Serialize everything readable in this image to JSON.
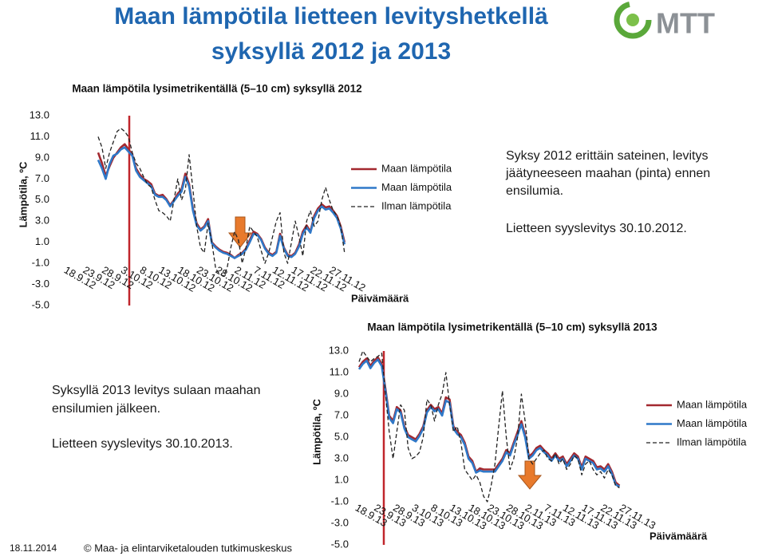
{
  "title": [
    "Maan lämpötila lietteen levityshetkellä",
    "syksyllä 2012 ja 2013"
  ],
  "logo": "MTT",
  "notes": [
    {
      "lines": [
        "Syksy 2012 erittäin sateinen, levitys",
        "jäätyneeseen maahan (pinta) ennen",
        "ensilumia.",
        "Lietteen syyslevitys 30.10.2012."
      ]
    },
    {
      "lines": [
        "Syksyllä 2013 levitys sulaan maahan",
        "ensilumien jälkeen.",
        "Lietteen syyslevitys 30.10.2013."
      ]
    }
  ],
  "footer": {
    "date": "18.11.2014",
    "copyright": "© Maa- ja elintarviketalouden tutkimuskeskus"
  },
  "chart_data": [
    {
      "type": "line",
      "title": "Maan lämpötila lysimetrikentällä (5–10 cm) syksyllä 2012",
      "ylabel": "Lämpötila, ºC",
      "xlabel": "Päivämäärä",
      "categories": [
        "18.9.12",
        null,
        null,
        null,
        null,
        "23.9.12",
        null,
        null,
        null,
        null,
        "28.9.12",
        null,
        null,
        null,
        null,
        "3.10.12",
        null,
        null,
        null,
        null,
        "8.10.12",
        null,
        null,
        null,
        null,
        "13.10.12",
        null,
        null,
        null,
        null,
        "18.10.12",
        null,
        null,
        null,
        null,
        "23.10.12",
        null,
        null,
        null,
        null,
        "28.10.12",
        null,
        null,
        null,
        null,
        "2.11.12",
        null,
        null,
        null,
        null,
        "7.11.12",
        null,
        null,
        null,
        null,
        "12.11.12",
        null,
        null,
        null,
        null,
        "17.11.12",
        null,
        null,
        null,
        null,
        "22.11.12",
        null,
        null,
        null,
        null,
        "27.11.12",
        null,
        null,
        null,
        null
      ],
      "series": [
        {
          "name": "Maan lämpötila",
          "color": "#a3282f",
          "values": [
            null,
            null,
            null,
            null,
            null,
            null,
            null,
            null,
            9.5,
            8.5,
            7.3,
            8.2,
            9,
            9.5,
            10,
            10.3,
            9.8,
            9.3,
            8,
            7.4,
            7,
            6.8,
            6.5,
            5.6,
            5.4,
            5.5,
            5.1,
            4.5,
            5,
            5.6,
            6,
            7.5,
            6.5,
            4.2,
            2.8,
            2.2,
            2.5,
            3.2,
            1,
            0.6,
            0.3,
            0.1,
            0,
            -0.2,
            -0.5,
            -0.2,
            0,
            0.4,
            1.2,
            2,
            1.8,
            1.3,
            0.5,
            0,
            -0.2,
            0.1,
            1.8,
            0.5,
            -0.2,
            -0.3,
            0,
            0.8,
            2,
            2.6,
            2,
            3.5,
            4.2,
            4.6,
            4.3,
            4.4,
            4,
            3.5,
            2.5,
            1,
            null
          ]
        },
        {
          "name": "Maan lämpötila",
          "color": "#2f78c8",
          "values": [
            null,
            null,
            null,
            null,
            null,
            null,
            null,
            null,
            8.8,
            8,
            7,
            8.4,
            9.2,
            9.4,
            9.8,
            10,
            9.6,
            9.2,
            7.8,
            7.2,
            6.9,
            6.6,
            6.3,
            5.5,
            5.3,
            5.3,
            5,
            4.4,
            4.9,
            5.4,
            5.8,
            7.2,
            6.3,
            4,
            2.6,
            2.1,
            2.4,
            3,
            0.9,
            0.5,
            0.2,
            0,
            -0.1,
            -0.3,
            -0.5,
            -0.3,
            -0.1,
            0.3,
            1,
            1.8,
            1.7,
            1.2,
            0.4,
            -0.1,
            -0.3,
            0,
            1.6,
            0.4,
            -0.3,
            -0.4,
            -0.1,
            0.6,
            1.8,
            2.4,
            1.9,
            3.3,
            4,
            4.4,
            4.1,
            4.2,
            3.8,
            3.3,
            2.3,
            0.8,
            null
          ]
        },
        {
          "name": "Ilman lämpötila",
          "color": "#222222",
          "dashed": true,
          "values": [
            null,
            null,
            null,
            null,
            null,
            null,
            null,
            null,
            11,
            10,
            8,
            9.5,
            10.5,
            11.5,
            11.8,
            11.5,
            11,
            9.5,
            8.5,
            8,
            7.2,
            6.5,
            6.2,
            5,
            4,
            3.8,
            3.5,
            3,
            5,
            7,
            5,
            6,
            9.3,
            6,
            2.5,
            0.5,
            0,
            2.8,
            1,
            -1.5,
            -2,
            -2.2,
            -1.5,
            0.5,
            2,
            1.2,
            -1,
            0.5,
            2.5,
            2,
            1.5,
            0.2,
            -1,
            0,
            1.5,
            3,
            3.8,
            0,
            -1,
            1,
            3,
            1.5,
            -0.3,
            3,
            4,
            2.5,
            3,
            5,
            6.2,
            5,
            4,
            3.5,
            2.5,
            0,
            null
          ]
        }
      ],
      "ylim": [
        -5,
        13
      ],
      "yticks": [
        {
          "value": 13,
          "label": "13.0"
        },
        {
          "value": 11,
          "label": "11.0"
        },
        {
          "value": 9,
          "label": "9.0"
        },
        {
          "value": 7,
          "label": "7.0"
        },
        {
          "value": 5,
          "label": "5.0"
        },
        {
          "value": 3,
          "label": "3.0"
        },
        {
          "value": 1,
          "label": "1.0"
        },
        {
          "value": -1,
          "label": "-1.0"
        },
        {
          "value": -3,
          "label": "-3.0"
        },
        {
          "value": -5,
          "label": "-5.0"
        }
      ]
    },
    {
      "type": "line",
      "title": "Maan lämpötila lysimetrikentällä (5–10 cm) syksyllä 2013",
      "ylabel": "Lämpötila, ºC",
      "xlabel": "Päivämäärä",
      "categories": [
        "18.9.13",
        null,
        null,
        null,
        null,
        "23.9.13",
        null,
        null,
        null,
        null,
        "28.9.13",
        null,
        null,
        null,
        null,
        "3.10.13",
        null,
        null,
        null,
        null,
        "8.10.13",
        null,
        null,
        null,
        null,
        "13.10.13",
        null,
        null,
        null,
        null,
        "18.10.13",
        null,
        null,
        null,
        null,
        "23.10.13",
        null,
        null,
        null,
        null,
        "28.10.13",
        null,
        null,
        null,
        null,
        "2.11.13",
        null,
        null,
        null,
        null,
        "7.11.13",
        null,
        null,
        null,
        null,
        "12.11.13",
        null,
        null,
        null,
        null,
        "17.11.13",
        null,
        null,
        null,
        null,
        "22.11.13",
        null,
        null,
        null,
        null,
        "27.11.13",
        null,
        null,
        null,
        null
      ],
      "series": [
        {
          "name": "Maan lämpötila",
          "color": "#a3282f",
          "values": [
            11.5,
            12,
            12.3,
            11.6,
            12.1,
            12.4,
            11.8,
            9.5,
            7,
            6.5,
            7.8,
            7.5,
            6,
            5.2,
            5,
            4.8,
            5.3,
            6,
            7.5,
            8,
            7.6,
            7.8,
            7.2,
            8.7,
            8.5,
            6,
            5.5,
            5.2,
            4.5,
            3.2,
            2.8,
            1.8,
            2.1,
            2,
            2,
            2,
            2,
            2.5,
            3,
            3.8,
            3.5,
            4.5,
            5.5,
            6.5,
            5.2,
            3.2,
            3.5,
            4,
            4.2,
            3.8,
            3.5,
            3,
            3.5,
            3,
            3.2,
            2.5,
            3,
            3.5,
            3.2,
            2.2,
            3.2,
            3,
            2.8,
            2.2,
            2.3,
            2,
            2.5,
            1.8,
            0.8,
            0.5,
            null,
            null,
            null,
            null,
            null
          ]
        },
        {
          "name": "Maan lämpötila",
          "color": "#2f78c8",
          "values": [
            11.3,
            11.8,
            12.1,
            11.4,
            11.9,
            12.2,
            11.6,
            9.3,
            6.8,
            6.3,
            7.6,
            7.3,
            5.8,
            5,
            4.8,
            4.6,
            5.1,
            5.8,
            7.3,
            7.8,
            7.4,
            7.6,
            7,
            8.4,
            8.2,
            5.8,
            5.3,
            5,
            4.3,
            3,
            2.6,
            1.7,
            1.9,
            1.8,
            1.8,
            1.8,
            1.8,
            2.3,
            2.8,
            3.6,
            3.3,
            4.3,
            5.2,
            6.2,
            5,
            3,
            3.3,
            3.8,
            4,
            3.6,
            3.3,
            2.8,
            3.3,
            2.8,
            3,
            2.3,
            2.8,
            3.3,
            3,
            2,
            3,
            2.8,
            2.6,
            2,
            2.1,
            1.8,
            2.3,
            1.6,
            0.6,
            0.4,
            null,
            null,
            null,
            null,
            null
          ]
        },
        {
          "name": "Ilman lämpötila",
          "color": "#222222",
          "dashed": true,
          "values": [
            12,
            13,
            12.5,
            12,
            12.3,
            12.5,
            12.8,
            9,
            5.5,
            3,
            5.5,
            8,
            7.5,
            4,
            3,
            3.2,
            3.6,
            5,
            8.5,
            8,
            6.5,
            8,
            9,
            11,
            8,
            5.5,
            6,
            4.5,
            2,
            1.5,
            1,
            1.5,
            0.8,
            -0.5,
            -1,
            0.5,
            2.5,
            6,
            9.3,
            5,
            2,
            3,
            5,
            9,
            6.5,
            3,
            2.5,
            3,
            3.5,
            3.8,
            3,
            2.8,
            3.5,
            2.5,
            3,
            2,
            2.5,
            3.3,
            3,
            1.5,
            2.5,
            2.8,
            2,
            1.5,
            1.8,
            1.2,
            2,
            1.5,
            0.5,
            0.3,
            null,
            null,
            null,
            null,
            null
          ]
        }
      ],
      "ylim": [
        -5,
        13
      ],
      "yticks": [
        {
          "value": 13,
          "label": "13.0"
        },
        {
          "value": 11,
          "label": "11.0"
        },
        {
          "value": 9,
          "label": "9.0"
        },
        {
          "value": 7,
          "label": "7.0"
        },
        {
          "value": 5,
          "label": "5.0"
        },
        {
          "value": 3,
          "label": "3.0"
        },
        {
          "value": 1,
          "label": "1.0"
        },
        {
          "value": -1,
          "label": "-1.0"
        },
        {
          "value": -3,
          "label": "-3.0"
        },
        {
          "value": -5,
          "label": "-5.0"
        }
      ]
    }
  ]
}
